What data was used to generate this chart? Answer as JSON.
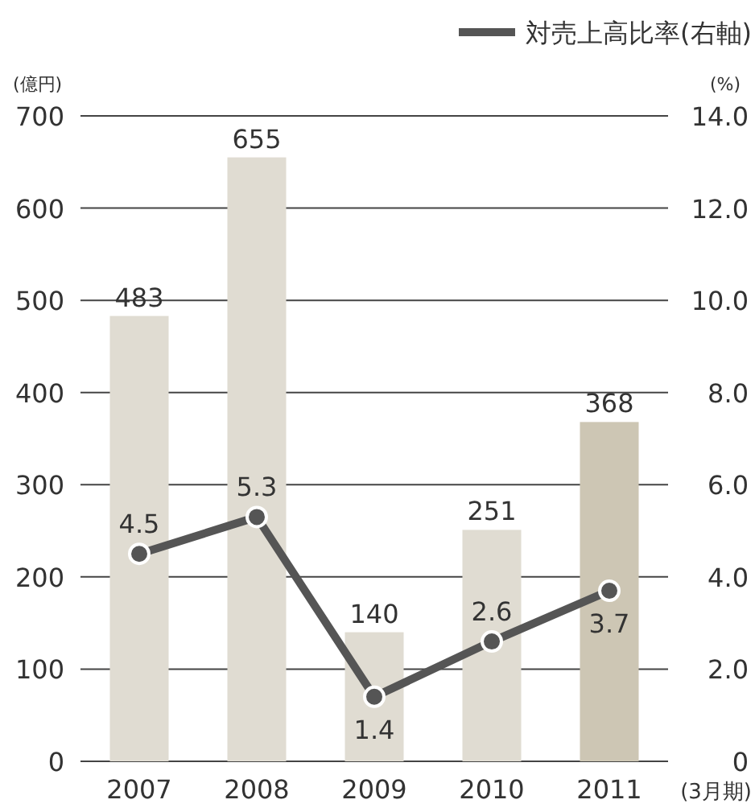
{
  "chart_data": {
    "type": "bar",
    "categories": [
      "2007",
      "2008",
      "2009",
      "2010",
      "2011"
    ],
    "series": [
      {
        "colors": [
          "#e0dcd2",
          "#e0dcd2",
          "#e0dcd2",
          "#e0dcd2",
          "#cdc6b4"
        ],
        "values": [
          483,
          655,
          140,
          251,
          368
        ]
      },
      {
        "type": "line",
        "name": "対売上高比率(右軸)",
        "color": "#555555",
        "axis": "y2",
        "values": [
          4.5,
          5.3,
          1.4,
          2.6,
          3.7
        ]
      }
    ],
    "ylim": [
      0,
      700
    ],
    "yticks": [
      0,
      100,
      200,
      300,
      400,
      500,
      600,
      700
    ],
    "y2lim": [
      0,
      14
    ],
    "y2ticks": [
      {
        "value": 0,
        "label": "0"
      },
      {
        "value": 2,
        "label": "2.0"
      },
      {
        "value": 4,
        "label": "4.0"
      },
      {
        "value": 6,
        "label": "6.0"
      },
      {
        "value": 8,
        "label": "8.0"
      },
      {
        "value": 10,
        "label": "10.0"
      },
      {
        "value": 12,
        "label": "12.0"
      },
      {
        "value": 14,
        "label": "14.0"
      }
    ],
    "ylabel": "(億円)",
    "y2label": "(%)",
    "xlabel": "(3月期)",
    "grid": "y",
    "legend": "top right",
    "marker": "circle",
    "line_style": "solid",
    "data_labels": true
  }
}
